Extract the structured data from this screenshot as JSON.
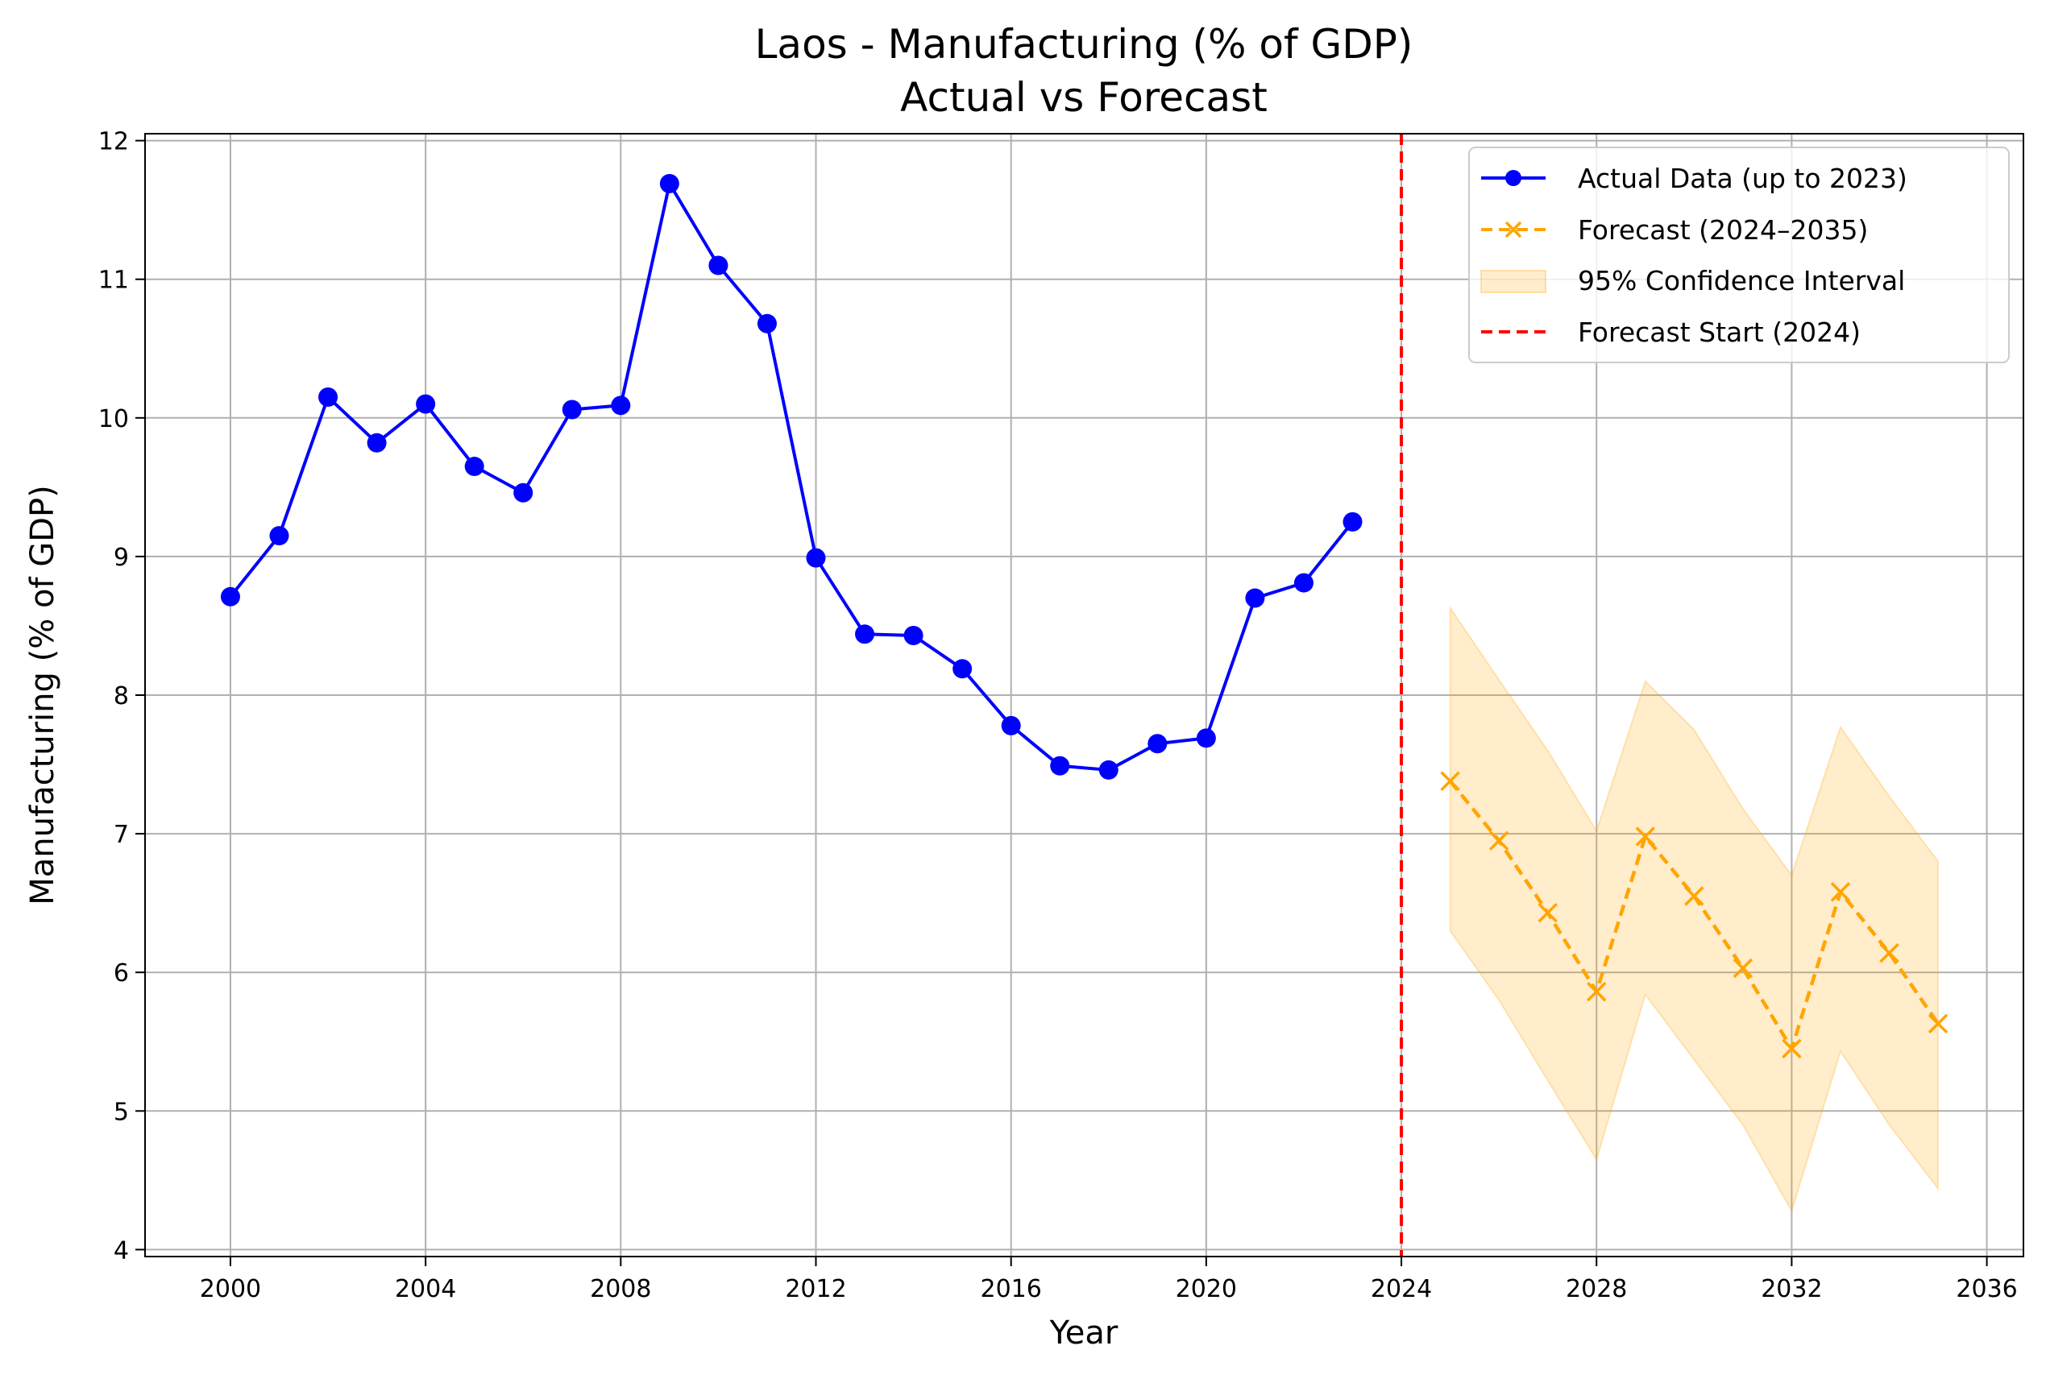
{
  "chart_data": {
    "type": "line",
    "title": "Laos - Manufacturing (% of GDP)",
    "subtitle": "Actual vs Forecast",
    "xlabel": "Year",
    "ylabel": "Manufacturing (% of GDP)",
    "xlim": [
      1998.25,
      2036.75
    ],
    "ylim": [
      3.95,
      12.05
    ],
    "xticks": [
      2000,
      2004,
      2008,
      2012,
      2016,
      2020,
      2024,
      2028,
      2032,
      2036
    ],
    "yticks": [
      4,
      5,
      6,
      7,
      8,
      9,
      10,
      11,
      12
    ],
    "grid": true,
    "legend_position": "top-right",
    "colors": {
      "actual": "#0000ff",
      "forecast": "#ffa500",
      "ci_fill": "#ffa500",
      "forecast_start": "#ff0000",
      "grid": "#b0b0b0"
    },
    "series": [
      {
        "name": "Actual Data (up to 2023)",
        "style": "solid-line-circle-markers",
        "x": [
          2000,
          2001,
          2002,
          2003,
          2004,
          2005,
          2006,
          2007,
          2008,
          2009,
          2010,
          2011,
          2012,
          2013,
          2014,
          2015,
          2016,
          2017,
          2018,
          2019,
          2020,
          2021,
          2022,
          2023
        ],
        "y": [
          8.71,
          9.15,
          10.15,
          9.82,
          10.1,
          9.65,
          9.46,
          10.06,
          10.09,
          11.69,
          11.1,
          10.68,
          8.99,
          8.44,
          8.43,
          8.19,
          7.78,
          7.49,
          7.46,
          7.65,
          7.69,
          8.7,
          8.81,
          9.25
        ]
      },
      {
        "name": "Forecast (2024–2035)",
        "style": "dashed-line-x-markers",
        "x": [
          2025,
          2026,
          2027,
          2028,
          2029,
          2030,
          2031,
          2032,
          2033,
          2034,
          2035
        ],
        "y": [
          7.38,
          6.95,
          6.43,
          5.86,
          6.98,
          6.55,
          6.03,
          5.45,
          6.58,
          6.14,
          5.63
        ]
      }
    ],
    "confidence_interval": {
      "name": "95% Confidence Interval",
      "x": [
        2025,
        2026,
        2027,
        2028,
        2029,
        2030,
        2031,
        2032,
        2033,
        2034,
        2035
      ],
      "lower": [
        6.3,
        5.8,
        5.22,
        4.65,
        5.84,
        5.37,
        4.9,
        4.28,
        5.43,
        4.9,
        4.44
      ],
      "upper": [
        8.63,
        8.11,
        7.6,
        7.02,
        8.1,
        7.75,
        7.18,
        6.7,
        7.77,
        7.27,
        6.8
      ]
    },
    "vline": {
      "name": "Forecast Start (2024)",
      "x": 2024
    }
  }
}
